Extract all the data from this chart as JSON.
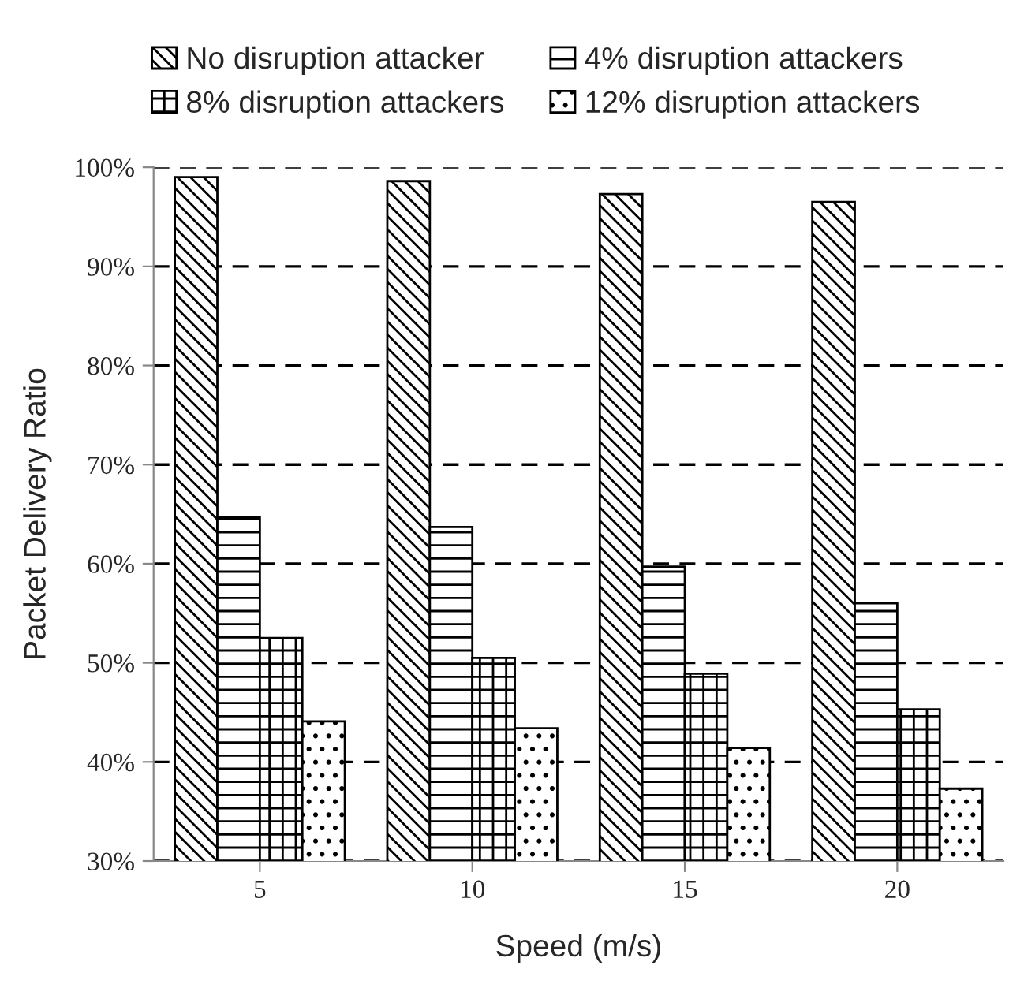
{
  "chart_data": {
    "type": "bar",
    "xlabel": "Speed (m/s)",
    "ylabel": "Packet Delivery Ratio",
    "categories": [
      "5",
      "10",
      "15",
      "20"
    ],
    "series": [
      {
        "name": "No disruption attacker",
        "color": "#000000",
        "values": [
          99.0,
          98.6,
          97.3,
          96.5
        ]
      },
      {
        "name": "4% disruption attackers",
        "color": "#000000",
        "values": [
          64.7,
          63.7,
          59.7,
          56.0
        ]
      },
      {
        "name": "8% disruption attackers",
        "color": "#000000",
        "values": [
          52.5,
          50.5,
          48.9,
          45.3
        ]
      },
      {
        "name": "12% disruption attackers",
        "color": "#000000",
        "values": [
          44.1,
          43.4,
          41.4,
          37.3
        ]
      }
    ],
    "ylim": [
      30,
      100
    ],
    "yticks": [
      {
        "value": 30,
        "label": "30%"
      },
      {
        "value": 40,
        "label": "40%"
      },
      {
        "value": 50,
        "label": "50%"
      },
      {
        "value": 60,
        "label": "60%"
      },
      {
        "value": 70,
        "label": "70%"
      },
      {
        "value": 80,
        "label": "80%"
      },
      {
        "value": 90,
        "label": "90%"
      },
      {
        "value": 100,
        "label": "100%"
      }
    ],
    "grid": "y",
    "legend": "top"
  }
}
